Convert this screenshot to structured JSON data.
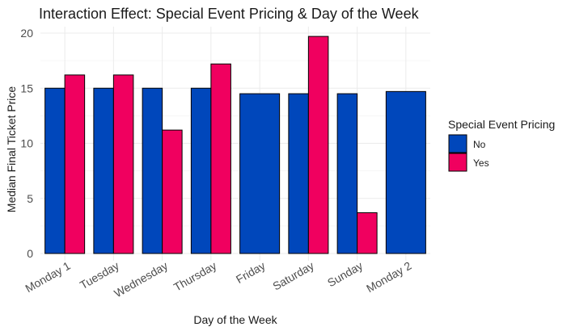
{
  "chart_data": {
    "type": "bar",
    "title": "Interaction Effect: Special Event Pricing & Day of the Week",
    "xlabel": "Day of the Week",
    "ylabel": "Median Final Ticket Price",
    "ylim": [
      0,
      21
    ],
    "yticks": [
      0,
      5,
      10,
      15,
      20
    ],
    "grid": true,
    "legend_position": "right",
    "legend_title": "Special Event Pricing",
    "categories": [
      "Monday 1",
      "Tuesday",
      "Wednesday",
      "Thursday",
      "Friday",
      "Saturday",
      "Sunday",
      "Monday 2"
    ],
    "series": [
      {
        "name": "No",
        "color": "#0047bb",
        "values": [
          15.0,
          15.0,
          15.0,
          15.0,
          14.5,
          14.5,
          14.5,
          14.7
        ]
      },
      {
        "name": "Yes",
        "color": "#f0005f",
        "values": [
          16.2,
          16.2,
          11.2,
          17.2,
          null,
          19.7,
          3.7,
          null
        ]
      }
    ]
  }
}
